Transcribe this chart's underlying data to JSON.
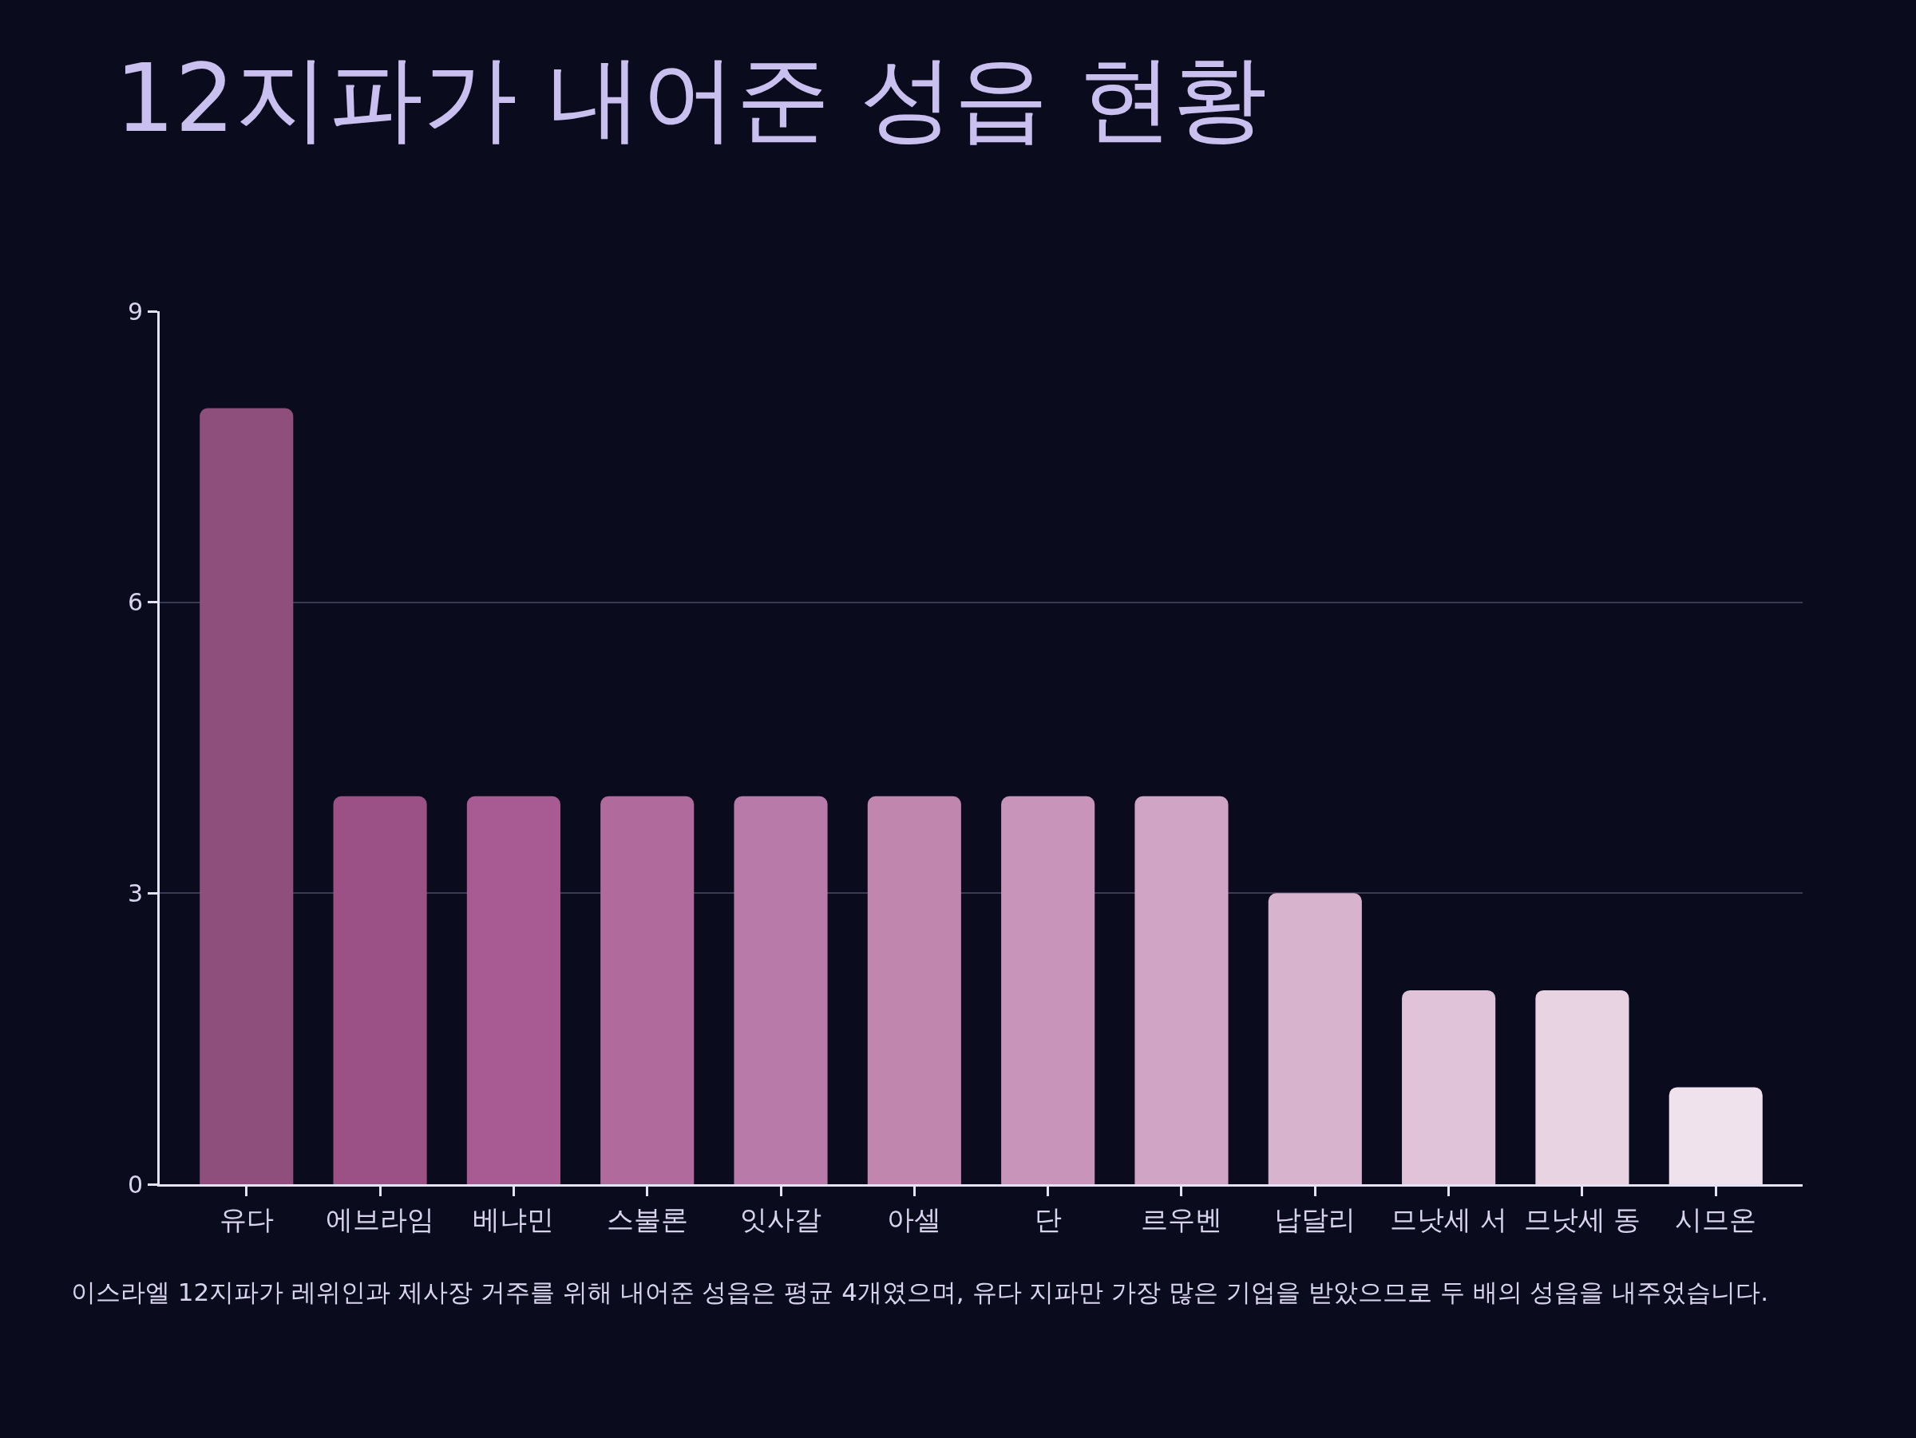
{
  "chart_data": {
    "type": "bar",
    "title": "12지파가 내어준 성읍 현황",
    "categories": [
      "유다",
      "에브라임",
      "베냐민",
      "스불론",
      "잇사갈",
      "아셀",
      "단",
      "르우벤",
      "납달리",
      "므낫세 서",
      "므낫세 동",
      "시므온"
    ],
    "values": [
      8,
      4,
      4,
      4,
      4,
      4,
      4,
      4,
      3,
      2,
      2,
      1
    ],
    "colors": [
      "#8f4f7d",
      "#9b5186",
      "#a85a92",
      "#b06a9c",
      "#b87aa8",
      "#c086ae",
      "#c994ba",
      "#d0a4c5",
      "#d8b3cd",
      "#e0c3d9",
      "#e8d3e3",
      "#f0e2ec"
    ],
    "ylim": [
      0,
      9
    ],
    "yticks": [
      0,
      3,
      6,
      9
    ],
    "grid": "y",
    "annotations": [
      "이스라엘 12지파가 레위인과 제사장 거주를 위해 내어준 성읍은 평균 4개였으며, 유다 지파만 가장 많은 기업을 받았으므로 두 배의 성읍을 내주었습니다."
    ]
  }
}
